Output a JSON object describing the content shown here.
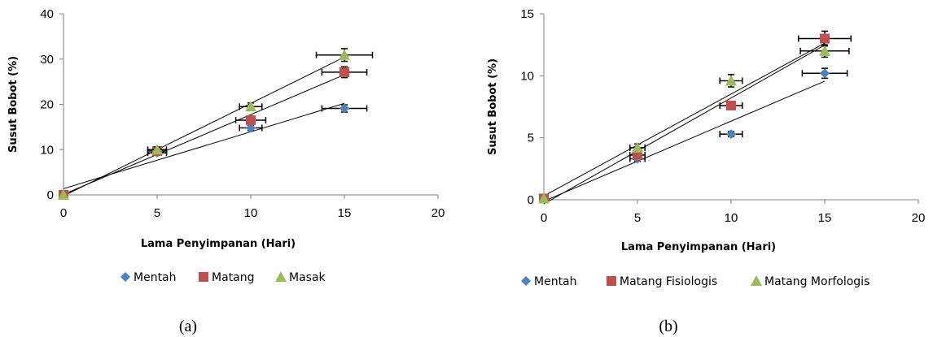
{
  "chart_data": [
    {
      "type": "scatter",
      "caption": "(a)",
      "xlabel": "Lama Penyimpanan (Hari)",
      "ylabel": "Susut Bobot (%)",
      "xlim": [
        0,
        20
      ],
      "ylim": [
        0,
        40
      ],
      "xticks": [
        0,
        5,
        10,
        15,
        20
      ],
      "yticks": [
        0,
        10,
        20,
        30,
        40
      ],
      "grid": false,
      "trendlines": true,
      "legend_position": "bottom",
      "series": [
        {
          "name": "Mentah",
          "color": "#4f81bd",
          "marker": "diamond",
          "x": [
            0,
            5,
            10,
            15
          ],
          "y": [
            0,
            9.3,
            14.8,
            19.1
          ],
          "yerr": [
            0,
            0.5,
            0.6,
            0.8
          ],
          "xerr": [
            0,
            0.5,
            0.6,
            1.2
          ]
        },
        {
          "name": "Matang",
          "color": "#c0504d",
          "marker": "square",
          "x": [
            0,
            5,
            10,
            15
          ],
          "y": [
            0,
            9.7,
            16.5,
            27.1
          ],
          "yerr": [
            0,
            0.5,
            0.8,
            1.2
          ],
          "xerr": [
            0,
            0.5,
            0.8,
            1.2
          ]
        },
        {
          "name": "Masak",
          "color": "#9bbb59",
          "marker": "triangle",
          "x": [
            0,
            5,
            10,
            15
          ],
          "y": [
            0,
            10.0,
            19.5,
            30.9
          ],
          "yerr": [
            0,
            0.5,
            0.8,
            1.4
          ],
          "xerr": [
            0,
            0.5,
            0.6,
            1.5
          ]
        }
      ]
    },
    {
      "type": "scatter",
      "caption": "(b)",
      "xlabel": "Lama Penyimpanan (Hari)",
      "ylabel": "Susut Bobot (%)",
      "xlim": [
        0,
        20
      ],
      "ylim": [
        0,
        15
      ],
      "xticks": [
        0,
        5,
        10,
        15,
        20
      ],
      "yticks": [
        0,
        5,
        10,
        15
      ],
      "grid": false,
      "trendlines": true,
      "legend_position": "bottom",
      "series": [
        {
          "name": "Mentah",
          "color": "#4f81bd",
          "marker": "diamond",
          "x": [
            0,
            5,
            10,
            15
          ],
          "y": [
            0.1,
            3.3,
            5.3,
            10.2
          ],
          "yerr": [
            0,
            0.2,
            0.2,
            0.4
          ],
          "xerr": [
            0,
            0.4,
            0.6,
            1.2
          ]
        },
        {
          "name": "Matang Fisiologis",
          "color": "#c0504d",
          "marker": "square",
          "x": [
            0,
            5,
            10,
            15
          ],
          "y": [
            0.1,
            3.6,
            7.6,
            13.0
          ],
          "yerr": [
            0,
            0.3,
            0.3,
            0.6
          ],
          "xerr": [
            0,
            0.4,
            0.6,
            1.4
          ]
        },
        {
          "name": "Matang Morfologis",
          "color": "#9bbb59",
          "marker": "triangle",
          "x": [
            0,
            5,
            10,
            15
          ],
          "y": [
            0.1,
            4.2,
            9.6,
            12.0
          ],
          "yerr": [
            0,
            0.3,
            0.5,
            0.5
          ],
          "xerr": [
            0,
            0.4,
            0.6,
            1.3
          ]
        }
      ]
    }
  ]
}
